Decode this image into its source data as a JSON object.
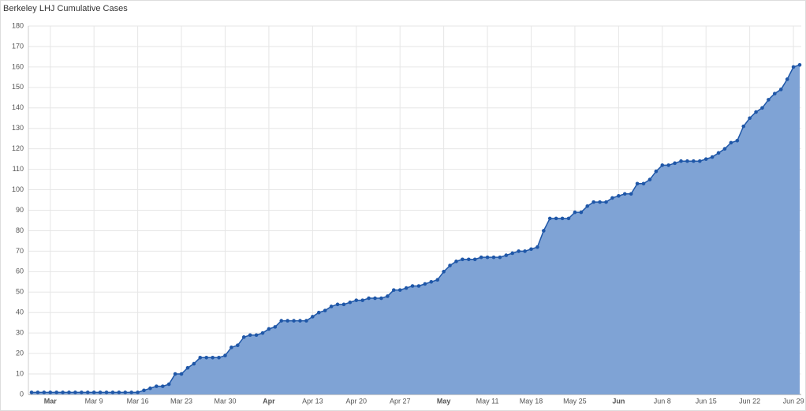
{
  "chart_data": {
    "type": "area",
    "title": "Berkeley LHJ Cumulative Cases",
    "categories": [
      null,
      null,
      null,
      "Mar",
      null,
      null,
      null,
      null,
      null,
      null,
      "Mar 9",
      null,
      null,
      null,
      null,
      null,
      null,
      "Mar 16",
      null,
      null,
      null,
      null,
      null,
      null,
      "Mar 23",
      null,
      null,
      null,
      null,
      null,
      null,
      "Mar 30",
      null,
      null,
      null,
      null,
      null,
      null,
      "Apr",
      null,
      null,
      null,
      null,
      null,
      null,
      "Apr 13",
      null,
      null,
      null,
      null,
      null,
      null,
      "Apr 20",
      null,
      null,
      null,
      null,
      null,
      null,
      "Apr 27",
      null,
      null,
      null,
      null,
      null,
      null,
      "May",
      null,
      null,
      null,
      null,
      null,
      null,
      "May 11",
      null,
      null,
      null,
      null,
      null,
      null,
      "May 18",
      null,
      null,
      null,
      null,
      null,
      null,
      "May 25",
      null,
      null,
      null,
      null,
      null,
      null,
      "Jun",
      null,
      null,
      null,
      null,
      null,
      null,
      "Jun 8",
      null,
      null,
      null,
      null,
      null,
      null,
      "Jun 15",
      null,
      null,
      null,
      null,
      null,
      null,
      "Jun 22",
      null,
      null,
      null,
      null,
      null,
      null,
      "Jun 29",
      null
    ],
    "values": [
      1,
      1,
      1,
      1,
      1,
      1,
      1,
      1,
      1,
      1,
      1,
      1,
      1,
      1,
      1,
      1,
      1,
      1,
      2,
      3,
      4,
      4,
      5,
      10,
      10,
      13,
      15,
      18,
      18,
      18,
      18,
      19,
      23,
      24,
      28,
      29,
      29,
      30,
      32,
      33,
      36,
      36,
      36,
      36,
      36,
      38,
      40,
      41,
      43,
      44,
      44,
      45,
      46,
      46,
      47,
      47,
      47,
      48,
      51,
      51,
      52,
      53,
      53,
      54,
      55,
      56,
      60,
      63,
      65,
      66,
      66,
      66,
      67,
      67,
      67,
      67,
      68,
      69,
      70,
      70,
      71,
      72,
      80,
      86,
      86,
      86,
      86,
      89,
      89,
      92,
      94,
      94,
      94,
      96,
      97,
      98,
      98,
      103,
      103,
      105,
      109,
      112,
      112,
      113,
      114,
      114,
      114,
      114,
      115,
      116,
      118,
      120,
      123,
      124,
      131,
      135,
      138,
      140,
      144,
      147,
      149,
      154,
      160,
      161
    ],
    "color": "#1f57a8",
    "fill": "#7fa3d5",
    "ylim": [
      0,
      180
    ],
    "yticks": [
      0,
      10,
      20,
      30,
      40,
      50,
      60,
      70,
      80,
      90,
      100,
      110,
      120,
      130,
      140,
      150,
      160,
      170,
      180
    ],
    "grid": true
  }
}
